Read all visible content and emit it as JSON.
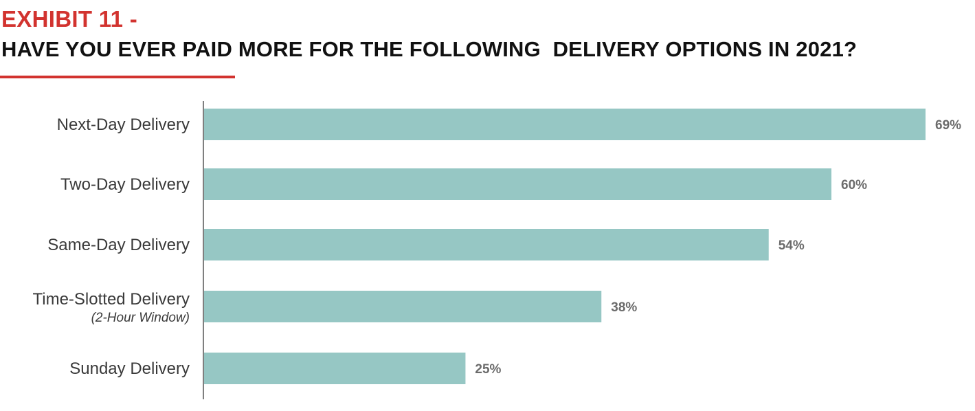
{
  "header": {
    "exhibit": "EXHIBIT 11 -",
    "title": "HAVE YOU EVER PAID MORE FOR THE FOLLOWING  DELIVERY OPTIONS IN 2021?"
  },
  "colors": {
    "accent": "#d2332f",
    "bar": "#96c7c4",
    "axis": "#555555"
  },
  "chart_data": {
    "type": "bar",
    "orientation": "horizontal",
    "categories": [
      {
        "label": "Next-Day Delivery",
        "sublabel": ""
      },
      {
        "label": "Two-Day Delivery",
        "sublabel": ""
      },
      {
        "label": "Same-Day Delivery",
        "sublabel": ""
      },
      {
        "label": "Time-Slotted Delivery",
        "sublabel": "(2-Hour Window)"
      },
      {
        "label": "Sunday Delivery",
        "sublabel": ""
      }
    ],
    "values": [
      69,
      60,
      54,
      38,
      25
    ],
    "value_labels": [
      "69%",
      "60%",
      "54%",
      "38%",
      "25%"
    ],
    "xlim": [
      0,
      69
    ],
    "grid": false,
    "legend": "none"
  }
}
